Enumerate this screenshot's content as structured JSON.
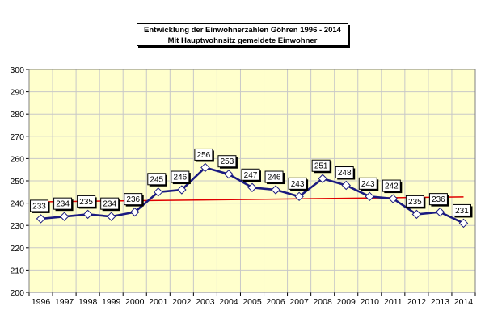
{
  "chart_data": {
    "type": "line",
    "title": "Entwicklung der Einwohnerzahlen Göhren 1996 - 2014",
    "subtitle": "Mit Hauptwohnsitz gemeldete Einwohner",
    "categories": [
      "1996",
      "1997",
      "1998",
      "1999",
      "2000",
      "2001",
      "2002",
      "2003",
      "2004",
      "2005",
      "2006",
      "2007",
      "2008",
      "2009",
      "2010",
      "2011",
      "2012",
      "2013",
      "2014"
    ],
    "series": [
      {
        "values": [
          233,
          234,
          235,
          234,
          236,
          245,
          246,
          256,
          253,
          247,
          246,
          243,
          251,
          248,
          243,
          242,
          235,
          236,
          231
        ],
        "color": "#1a1a80"
      }
    ],
    "trendline": {
      "start": 240.6,
      "end": 242.8,
      "color": "#e00000"
    },
    "ylim": [
      200,
      300
    ],
    "yticks": [
      200,
      210,
      220,
      230,
      240,
      250,
      260,
      270,
      280,
      290,
      300
    ],
    "grid": true,
    "plot_background": "#ffffcc",
    "grid_color": "#c8c8c8",
    "xlabel": "",
    "ylabel": ""
  }
}
